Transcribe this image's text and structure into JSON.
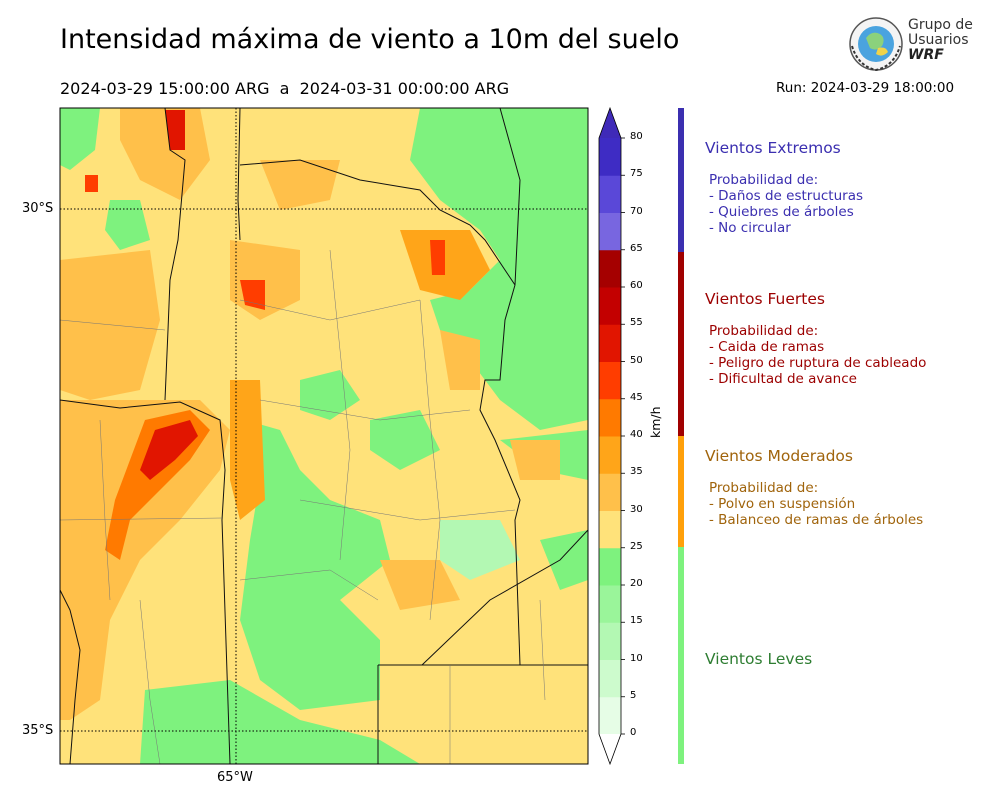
{
  "header": {
    "title": "Intensidad máxima de viento a 10m del suelo",
    "period": "2024-03-29 15:00:00 ARG  a  2024-03-31 00:00:00 ARG",
    "run": "Run: 2024-03-29 18:00:00"
  },
  "logo": {
    "line1": "Grupo de",
    "line2": "Usuarios",
    "line3": "WRF"
  },
  "map": {
    "lat_labels": [
      "30°S",
      "35°S"
    ],
    "lon_labels": [
      "65°W"
    ]
  },
  "colorbar": {
    "unit": "km/h",
    "ticks": [
      "0",
      "5",
      "10",
      "15",
      "20",
      "25",
      "30",
      "35",
      "40",
      "45",
      "50",
      "55",
      "60",
      "65",
      "70",
      "75",
      "80"
    ],
    "colors": [
      "#e6fde6",
      "#cdfbcd",
      "#b3f8b3",
      "#9af59a",
      "#7ef27e",
      "#ffe27a",
      "#ffc04a",
      "#ffa519",
      "#ff7a00",
      "#ff3d00",
      "#e11500",
      "#c30000",
      "#a50000",
      "#7866e0",
      "#5a48d8",
      "#3e2cc4"
    ],
    "over_color": "#3f2ab8",
    "under_color": "#ffffff"
  },
  "categories": [
    {
      "title": "Vientos Extremos",
      "color": "#3b2fb0",
      "bar_color": "#3b2fb0",
      "lines": [
        "Probabilidad de:",
        "- Daños de estructuras",
        "- Quiebres de árboles",
        "- No circular"
      ]
    },
    {
      "title": "Vientos Fuertes",
      "color": "#9c0000",
      "bar_color": "#a00000",
      "lines": [
        "Probabilidad de:",
        "- Caida de ramas",
        "- Peligro de ruptura de cableado",
        "- Dificultad de avance"
      ]
    },
    {
      "title": "Vientos Moderados",
      "color": "#a0640c",
      "bar_color": "#ffa00a",
      "lines": [
        "Probabilidad de:",
        "- Polvo en suspensión",
        "- Balanceo de ramas de árboles"
      ]
    },
    {
      "title": "Vientos Leves",
      "color": "#2e7d32",
      "bar_color": "#7ef27e",
      "lines": []
    }
  ]
}
